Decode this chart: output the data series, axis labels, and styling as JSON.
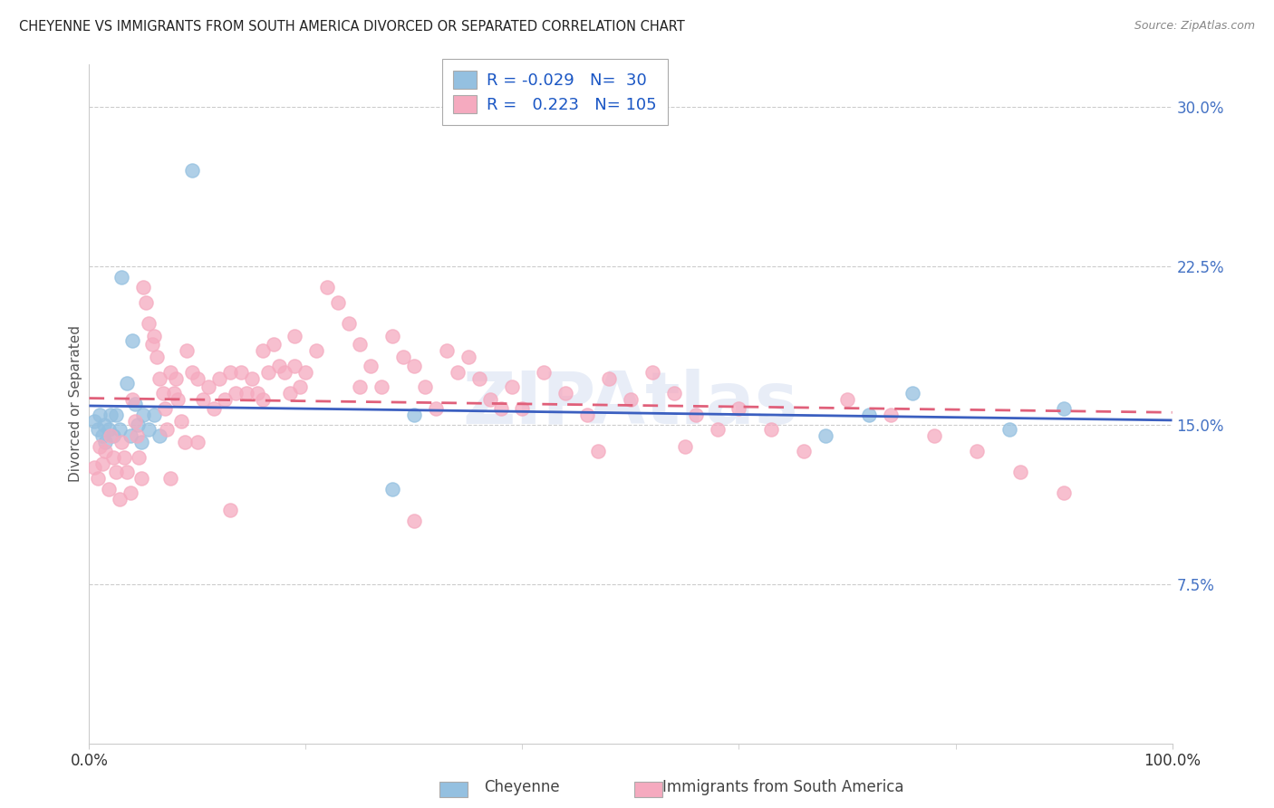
{
  "title": "CHEYENNE VS IMMIGRANTS FROM SOUTH AMERICA DIVORCED OR SEPARATED CORRELATION CHART",
  "source": "Source: ZipAtlas.com",
  "ylabel": "Divorced or Separated",
  "xlim": [
    0.0,
    1.0
  ],
  "ylim": [
    0.0,
    0.32
  ],
  "yticks": [
    0.075,
    0.15,
    0.225,
    0.3
  ],
  "ytick_labels": [
    "7.5%",
    "15.0%",
    "22.5%",
    "30.0%"
  ],
  "xticks": [
    0.0,
    1.0
  ],
  "xtick_labels": [
    "0.0%",
    "100.0%"
  ],
  "legend_R_blue": "-0.029",
  "legend_N_blue": "30",
  "legend_R_pink": "0.223",
  "legend_N_pink": "105",
  "blue_color": "#94C0E0",
  "pink_color": "#F5AABF",
  "blue_line_color": "#3B5FC0",
  "pink_line_color": "#E0607A",
  "watermark": "ZIPAtlas",
  "blue_scatter_x": [
    0.005,
    0.008,
    0.01,
    0.012,
    0.014,
    0.015,
    0.018,
    0.02,
    0.022,
    0.025,
    0.028,
    0.03,
    0.035,
    0.038,
    0.04,
    0.042,
    0.045,
    0.048,
    0.05,
    0.055,
    0.06,
    0.065,
    0.095,
    0.28,
    0.3,
    0.68,
    0.72,
    0.76,
    0.85,
    0.9
  ],
  "blue_scatter_y": [
    0.152,
    0.148,
    0.155,
    0.145,
    0.15,
    0.142,
    0.148,
    0.155,
    0.145,
    0.155,
    0.148,
    0.22,
    0.17,
    0.145,
    0.19,
    0.16,
    0.15,
    0.142,
    0.155,
    0.148,
    0.155,
    0.145,
    0.27,
    0.12,
    0.155,
    0.145,
    0.155,
    0.165,
    0.148,
    0.158
  ],
  "pink_scatter_x": [
    0.005,
    0.008,
    0.01,
    0.012,
    0.015,
    0.018,
    0.02,
    0.022,
    0.025,
    0.028,
    0.03,
    0.032,
    0.035,
    0.038,
    0.04,
    0.042,
    0.044,
    0.046,
    0.048,
    0.05,
    0.052,
    0.055,
    0.058,
    0.06,
    0.062,
    0.065,
    0.068,
    0.07,
    0.072,
    0.075,
    0.078,
    0.08,
    0.082,
    0.085,
    0.088,
    0.09,
    0.095,
    0.1,
    0.105,
    0.11,
    0.115,
    0.12,
    0.125,
    0.13,
    0.135,
    0.14,
    0.145,
    0.15,
    0.155,
    0.16,
    0.165,
    0.17,
    0.175,
    0.18,
    0.185,
    0.19,
    0.195,
    0.2,
    0.21,
    0.22,
    0.23,
    0.24,
    0.25,
    0.26,
    0.27,
    0.28,
    0.29,
    0.3,
    0.31,
    0.32,
    0.33,
    0.34,
    0.35,
    0.36,
    0.37,
    0.38,
    0.39,
    0.4,
    0.42,
    0.44,
    0.46,
    0.48,
    0.5,
    0.52,
    0.54,
    0.56,
    0.58,
    0.6,
    0.63,
    0.66,
    0.7,
    0.74,
    0.78,
    0.82,
    0.86,
    0.9,
    0.55,
    0.47,
    0.3,
    0.25,
    0.19,
    0.16,
    0.13,
    0.1,
    0.075
  ],
  "pink_scatter_y": [
    0.13,
    0.125,
    0.14,
    0.132,
    0.138,
    0.12,
    0.145,
    0.135,
    0.128,
    0.115,
    0.142,
    0.135,
    0.128,
    0.118,
    0.162,
    0.152,
    0.145,
    0.135,
    0.125,
    0.215,
    0.208,
    0.198,
    0.188,
    0.192,
    0.182,
    0.172,
    0.165,
    0.158,
    0.148,
    0.175,
    0.165,
    0.172,
    0.162,
    0.152,
    0.142,
    0.185,
    0.175,
    0.172,
    0.162,
    0.168,
    0.158,
    0.172,
    0.162,
    0.175,
    0.165,
    0.175,
    0.165,
    0.172,
    0.165,
    0.185,
    0.175,
    0.188,
    0.178,
    0.175,
    0.165,
    0.178,
    0.168,
    0.175,
    0.185,
    0.215,
    0.208,
    0.198,
    0.188,
    0.178,
    0.168,
    0.192,
    0.182,
    0.178,
    0.168,
    0.158,
    0.185,
    0.175,
    0.182,
    0.172,
    0.162,
    0.158,
    0.168,
    0.158,
    0.175,
    0.165,
    0.155,
    0.172,
    0.162,
    0.175,
    0.165,
    0.155,
    0.148,
    0.158,
    0.148,
    0.138,
    0.162,
    0.155,
    0.145,
    0.138,
    0.128,
    0.118,
    0.14,
    0.138,
    0.105,
    0.168,
    0.192,
    0.162,
    0.11,
    0.142,
    0.125
  ]
}
